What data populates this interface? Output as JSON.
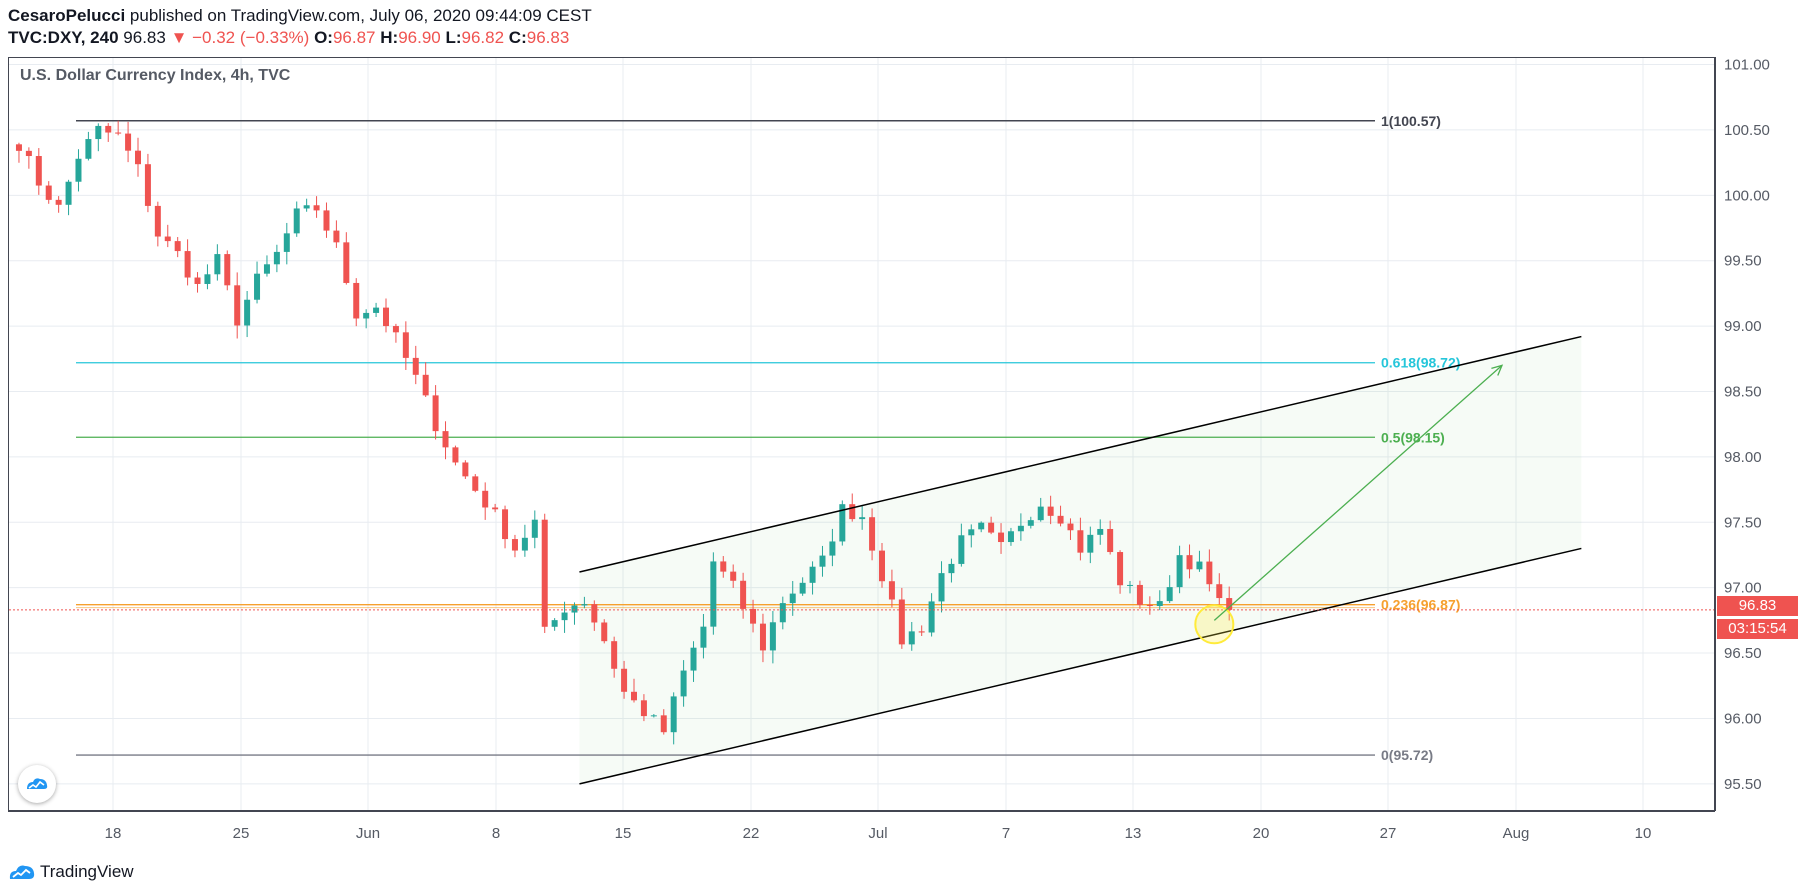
{
  "header": {
    "author": "CesaroPelucci",
    "published": " published on TradingView.com, July 06, 2020 09:44:09 CEST",
    "symbol": "TVC:DXY, 240",
    "last": "96.83",
    "change": "−0.32 (−0.33%)",
    "o_label": "O:",
    "o_value": "96.87",
    "h_label": "H:",
    "h_value": "96.90",
    "l_label": "L:",
    "l_value": "96.82",
    "c_label": "C:",
    "c_value": "96.83"
  },
  "chart_title": "U.S. Dollar Currency Index, 4h, TVC",
  "price_tag": "96.83",
  "countdown_tag": "03:15:54",
  "footer": {
    "brand": "TradingView"
  },
  "colors": {
    "up": "#26a69a",
    "down": "#ef5350",
    "grid": "#e8ecf1",
    "fib_1": "#434651",
    "fib_0618": "#26c6da",
    "fib_05": "#4caf50",
    "fib_0236": "#f6a02e",
    "fib_0": "#787b86",
    "channel": "#000000",
    "arrow": "#4caf50",
    "circle": "#ffeb3b"
  },
  "chart_data": {
    "type": "candlestick",
    "title": "U.S. Dollar Currency Index, 4h, TVC",
    "ylim": [
      95.3,
      101.05
    ],
    "y_ticks": [
      "95.50",
      "96.00",
      "96.50",
      "97.00",
      "97.50",
      "98.00",
      "98.50",
      "99.00",
      "99.50",
      "100.00",
      "100.50",
      "101.00"
    ],
    "x_ticks": [
      "18",
      "25",
      "Jun",
      "8",
      "15",
      "22",
      "Jul",
      "7",
      "13",
      "20",
      "27",
      "Aug",
      "10"
    ],
    "grid": true,
    "close_path": [
      [
        0,
        100.4
      ],
      [
        2,
        100.1
      ],
      [
        4,
        99.9
      ],
      [
        6,
        100.3
      ],
      [
        8,
        100.5
      ],
      [
        10,
        100.45
      ],
      [
        12,
        100.2
      ],
      [
        14,
        99.7
      ],
      [
        16,
        99.55
      ],
      [
        18,
        99.3
      ],
      [
        20,
        99.5
      ],
      [
        22,
        99.05
      ],
      [
        24,
        99.35
      ],
      [
        26,
        99.55
      ],
      [
        28,
        99.85
      ],
      [
        30,
        99.9
      ],
      [
        32,
        99.6
      ],
      [
        34,
        99.1
      ],
      [
        36,
        99.15
      ],
      [
        38,
        98.9
      ],
      [
        40,
        98.6
      ],
      [
        42,
        98.25
      ],
      [
        44,
        97.95
      ],
      [
        46,
        97.75
      ],
      [
        48,
        97.55
      ],
      [
        50,
        97.3
      ],
      [
        52,
        97.5
      ],
      [
        53,
        96.65
      ],
      [
        55,
        96.85
      ],
      [
        57,
        96.9
      ],
      [
        59,
        96.6
      ],
      [
        61,
        96.2
      ],
      [
        63,
        96.05
      ],
      [
        65,
        95.9
      ],
      [
        67,
        96.35
      ],
      [
        69,
        96.7
      ],
      [
        70,
        97.2
      ],
      [
        72,
        97.0
      ],
      [
        74,
        96.7
      ],
      [
        75,
        96.55
      ],
      [
        77,
        96.9
      ],
      [
        79,
        97.05
      ],
      [
        81,
        97.2
      ],
      [
        83,
        97.6
      ],
      [
        85,
        97.55
      ],
      [
        87,
        97.1
      ],
      [
        89,
        96.6
      ],
      [
        91,
        96.7
      ],
      [
        93,
        97.1
      ],
      [
        95,
        97.35
      ],
      [
        97,
        97.45
      ],
      [
        99,
        97.3
      ],
      [
        101,
        97.5
      ],
      [
        103,
        97.65
      ],
      [
        105,
        97.55
      ],
      [
        107,
        97.3
      ],
      [
        109,
        97.45
      ],
      [
        111,
        97.05
      ],
      [
        113,
        96.9
      ],
      [
        115,
        96.85
      ],
      [
        117,
        97.25
      ],
      [
        119,
        97.15
      ],
      [
        121,
        96.87
      ],
      [
        122,
        96.83
      ]
    ],
    "fib_levels": [
      {
        "label": "1(100.57)",
        "value": 100.57
      },
      {
        "label": "0.618(98.72)",
        "value": 98.72
      },
      {
        "label": "0.5(98.15)",
        "value": 98.15
      },
      {
        "label": "0.236(96.87)",
        "value": 96.87
      },
      {
        "label": "0(95.72)",
        "value": 95.72
      }
    ],
    "channel": {
      "upper": [
        [
          57,
          97.12
        ],
        [
          158,
          98.92
        ]
      ],
      "lower": [
        [
          57,
          95.5
        ],
        [
          158,
          97.3
        ]
      ]
    },
    "projection_arrow": [
      [
        121,
        96.75
      ],
      [
        150,
        98.7
      ]
    ],
    "highlight_circle": [
      121,
      96.72
    ],
    "current_price": 96.83
  }
}
